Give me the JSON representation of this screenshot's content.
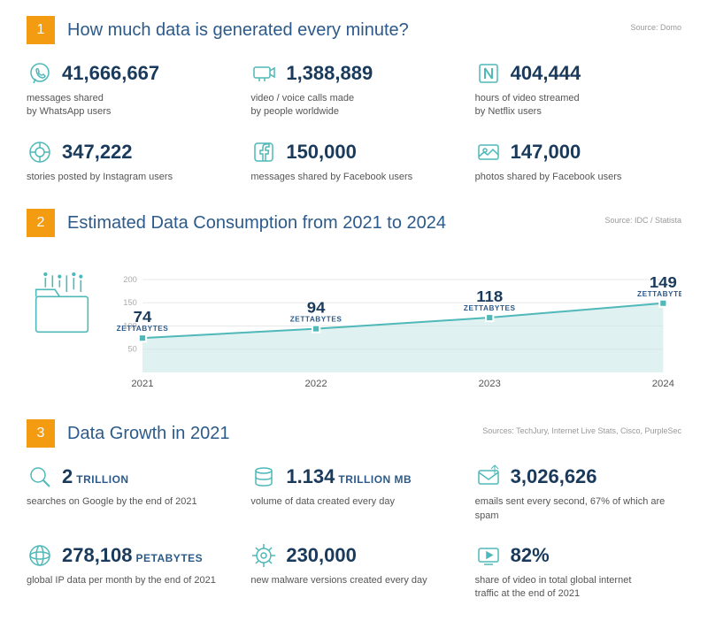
{
  "section1": {
    "number": "1",
    "title": "How much data is generated every minute?",
    "source": "Source: Domo",
    "stats": [
      {
        "icon": "whatsapp",
        "value": "41,666,667",
        "unit": "",
        "desc": "messages shared\nby WhatsApp users"
      },
      {
        "icon": "video-call",
        "value": "1,388,889",
        "unit": "",
        "desc": "video / voice calls made\nby people worldwide"
      },
      {
        "icon": "netflix",
        "value": "404,444",
        "unit": "",
        "desc": "hours of video streamed\nby Netflix users"
      },
      {
        "icon": "instagram",
        "value": "347,222",
        "unit": "",
        "desc": "stories posted by Instagram users"
      },
      {
        "icon": "facebook",
        "value": "150,000",
        "unit": "",
        "desc": "messages shared by Facebook users"
      },
      {
        "icon": "photo",
        "value": "147,000",
        "unit": "",
        "desc": "photos shared by Facebook users"
      }
    ]
  },
  "section2": {
    "number": "2",
    "title": "Estimated Data Consumption from 2021 to 2024",
    "source": "Source: IDC / Statista",
    "chart": {
      "type": "area",
      "years": [
        "2021",
        "2022",
        "2023",
        "2024"
      ],
      "values": [
        74,
        94,
        118,
        149
      ],
      "unit_label": "ZETTABYTES",
      "yticks": [
        50,
        100,
        150,
        200
      ],
      "ylim": [
        0,
        200
      ],
      "line_color": "#4fb8b8",
      "area_color": "#cce7ea",
      "grid_color": "#e8e8e8",
      "value_fontsize": 18,
      "tick_fontsize": 11
    }
  },
  "section3": {
    "number": "3",
    "title": "Data Growth in 2021",
    "source": "Sources: TechJury, Internet Live Stats, Cisco, PurpleSec",
    "stats": [
      {
        "icon": "search",
        "value": "2",
        "unit": "TRILLION",
        "desc": "searches on Google by the end of 2021"
      },
      {
        "icon": "database",
        "value": "1.134",
        "unit": "TRILLION MB",
        "desc": "volume of data created every day"
      },
      {
        "icon": "email",
        "value": "3,026,626",
        "unit": "",
        "desc": "emails sent every second, 67% of which are spam"
      },
      {
        "icon": "globe",
        "value": "278,108",
        "unit": "PETABYTES",
        "desc": "global IP data per month by the end of 2021"
      },
      {
        "icon": "malware",
        "value": "230,000",
        "unit": "",
        "desc": "new malware versions created every day"
      },
      {
        "icon": "play",
        "value": "82%",
        "unit": "",
        "desc": "share of video in total global internet\ntraffic at the end of 2021"
      }
    ]
  },
  "colors": {
    "accent_orange": "#f39c12",
    "title_blue": "#2c5a8a",
    "value_navy": "#1a3a5c",
    "icon_teal": "#4fb8b8",
    "text_gray": "#555555",
    "source_gray": "#999999"
  }
}
